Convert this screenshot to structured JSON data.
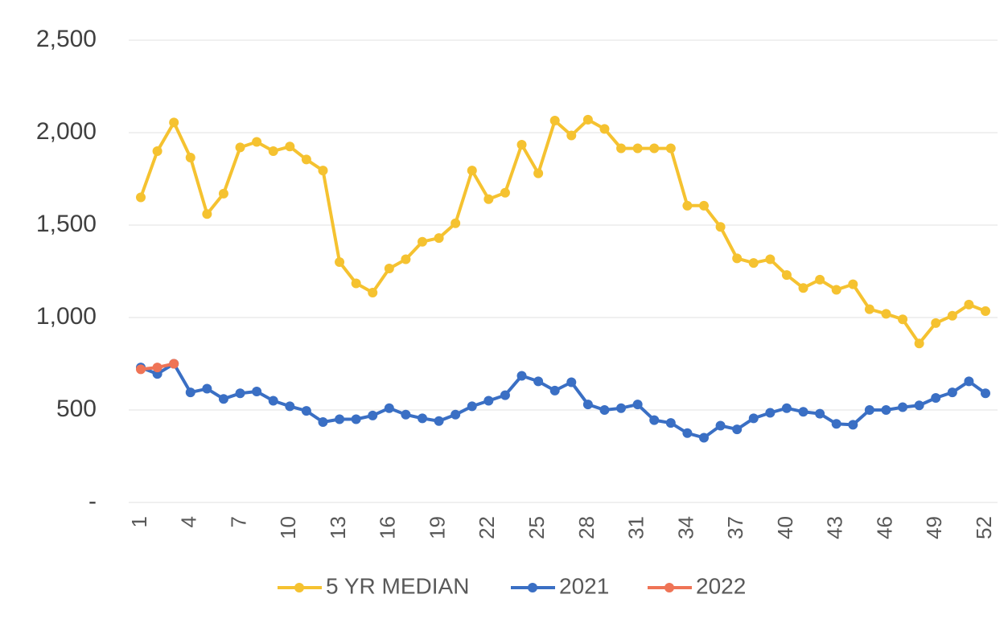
{
  "chart_data": {
    "type": "line",
    "categories": [
      1,
      null,
      null,
      4,
      null,
      null,
      7,
      null,
      null,
      10,
      null,
      null,
      13,
      null,
      null,
      16,
      null,
      null,
      19,
      null,
      null,
      22,
      null,
      null,
      25,
      null,
      null,
      28,
      null,
      null,
      31,
      null,
      null,
      34,
      null,
      null,
      37,
      null,
      null,
      40,
      null,
      null,
      43,
      null,
      null,
      46,
      null,
      null,
      49,
      null,
      null,
      52
    ],
    "series": [
      {
        "name": "5 YR MEDIAN",
        "color": "#f5c230",
        "values": [
          1650,
          1900,
          2055,
          1865,
          1560,
          1670,
          1920,
          1950,
          1900,
          1925,
          1855,
          1795,
          1300,
          1185,
          1135,
          1265,
          1315,
          1410,
          1430,
          1510,
          1795,
          1640,
          1675,
          1935,
          1780,
          2065,
          1985,
          2070,
          2020,
          1915,
          1915,
          1915,
          1915,
          1605,
          1605,
          1490,
          1320,
          1295,
          1315,
          1230,
          1160,
          1205,
          1150,
          1180,
          1045,
          1020,
          990,
          860,
          970,
          1010,
          1070,
          1035
        ]
      },
      {
        "name": "2021",
        "color": "#3a6fc4",
        "values": [
          730,
          695,
          750,
          595,
          615,
          560,
          590,
          600,
          550,
          520,
          495,
          435,
          450,
          450,
          470,
          510,
          475,
          455,
          440,
          475,
          520,
          550,
          580,
          685,
          655,
          605,
          650,
          530,
          500,
          510,
          530,
          445,
          430,
          375,
          350,
          415,
          395,
          455,
          485,
          510,
          490,
          480,
          425,
          420,
          500,
          500,
          515,
          525,
          565,
          595,
          655,
          590
        ]
      },
      {
        "name": "2022",
        "color": "#ef7456",
        "values": [
          720,
          730,
          750,
          null,
          null,
          null,
          null,
          null,
          null,
          null,
          null,
          null,
          null,
          null,
          null,
          null,
          null,
          null,
          null,
          null,
          null,
          null,
          null,
          null,
          null,
          null,
          null,
          null,
          null,
          null,
          null,
          null,
          null,
          null,
          null,
          null,
          null,
          null,
          null,
          null,
          null,
          null,
          null,
          null,
          null,
          null,
          null,
          null,
          null,
          null,
          null,
          null
        ]
      }
    ],
    "ylim": [
      0,
      2500
    ],
    "yticks": [
      {
        "value": 0,
        "label": "-"
      },
      500,
      {
        "value": 1000,
        "label": "1,000"
      },
      {
        "value": 1500,
        "label": "1,500"
      },
      {
        "value": 2000,
        "label": "2,000"
      },
      {
        "value": 2500,
        "label": "2,500"
      }
    ],
    "grid": true,
    "legend": "bottom"
  }
}
